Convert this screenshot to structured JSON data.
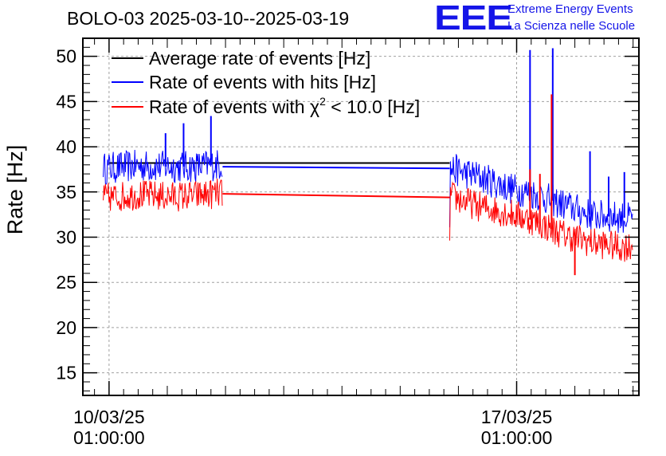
{
  "header": {
    "title": "BOLO-03 2025-03-10--2025-03-19"
  },
  "logo": {
    "mark": "EEE",
    "line1": "Extreme Energy Events",
    "line2": "La Scienza nelle Scuole",
    "color": "#1515e8"
  },
  "colors": {
    "average": "#000000",
    "hits": "#0000ff",
    "chi2": "#ff0000",
    "grid": "#a0a0a0"
  },
  "chart_data": {
    "type": "line",
    "title": "BOLO-03 2025-03-10--2025-03-19",
    "ylabel": "Rate [Hz]",
    "xlabel": "",
    "ylim": [
      12.5,
      52
    ],
    "yticks": [
      15,
      20,
      25,
      30,
      35,
      40,
      45,
      50
    ],
    "xlim_days": [
      -0.45,
      9.1
    ],
    "xticks": [
      {
        "day": 0,
        "line1": "10/03/25",
        "line2": "01:00:00"
      },
      {
        "day": 7,
        "line1": "17/03/25",
        "line2": "01:00:00"
      }
    ],
    "grid": true,
    "legend_position": "top-left",
    "legend": [
      {
        "key": "average",
        "label": "Average rate of events [Hz]"
      },
      {
        "key": "hits",
        "label": "Rate of events with hits [Hz]"
      },
      {
        "key": "chi2",
        "label_pre": "Rate of events with ",
        "label_chi": "χ",
        "label_sup": "2",
        "label_post": " < 10.0 [Hz]"
      }
    ],
    "series": [
      {
        "key": "average",
        "name": "Average rate of events [Hz]",
        "segments": [
          {
            "x": [
              0.0,
              1.95,
              5.85
            ],
            "y": [
              38.2,
              38.2,
              38.2
            ]
          }
        ]
      },
      {
        "key": "hits",
        "name": "Rate of events with hits [Hz]",
        "noise": 1.8,
        "segments": [
          {
            "x": [
              -0.1,
              0.5,
              1.0,
              1.5,
              1.95
            ],
            "y": [
              37.6,
              37.9,
              37.8,
              37.8,
              38.1
            ]
          },
          {
            "x": [
              1.95,
              5.85
            ],
            "y": [
              37.8,
              37.6
            ]
          },
          {
            "x": [
              5.85,
              6.3,
              6.9,
              7.3,
              7.8,
              8.3,
              8.8,
              9.0
            ],
            "y": [
              37.6,
              36.8,
              35.4,
              34.8,
              33.6,
              32.4,
              32.2,
              32.0
            ]
          }
        ],
        "spikes": [
          {
            "x": 0.97,
            "y": 41.5
          },
          {
            "x": 1.28,
            "y": 42.6
          },
          {
            "x": 1.75,
            "y": 43.4
          },
          {
            "x": 7.23,
            "y": 50.7
          },
          {
            "x": 7.62,
            "y": 50.9
          },
          {
            "x": 8.26,
            "y": 39.5
          },
          {
            "x": 8.58,
            "y": 36.7
          },
          {
            "x": 8.85,
            "y": 37.2
          }
        ]
      },
      {
        "key": "chi2",
        "name": "Rate of events with χ2 < 10.0 [Hz]",
        "noise": 1.7,
        "segments": [
          {
            "x": [
              -0.1,
              0.5,
              1.0,
              1.5,
              1.95
            ],
            "y": [
              34.3,
              34.7,
              34.5,
              34.6,
              34.9
            ]
          },
          {
            "x": [
              1.95,
              5.85
            ],
            "y": [
              34.8,
              34.4
            ]
          },
          {
            "x": [
              5.85,
              6.3,
              6.9,
              7.3,
              7.8,
              8.3,
              8.8,
              9.0
            ],
            "y": [
              34.6,
              33.5,
              32.6,
              31.8,
              30.3,
              29.4,
              28.9,
              29.1
            ]
          }
        ],
        "spikes": [
          {
            "x": 7.6,
            "y": 45.8
          },
          {
            "x": 7.23,
            "y": 37.5
          },
          {
            "x": 8.0,
            "y": 25.8
          },
          {
            "x": 7.4,
            "y": 37.0
          }
        ]
      }
    ]
  }
}
